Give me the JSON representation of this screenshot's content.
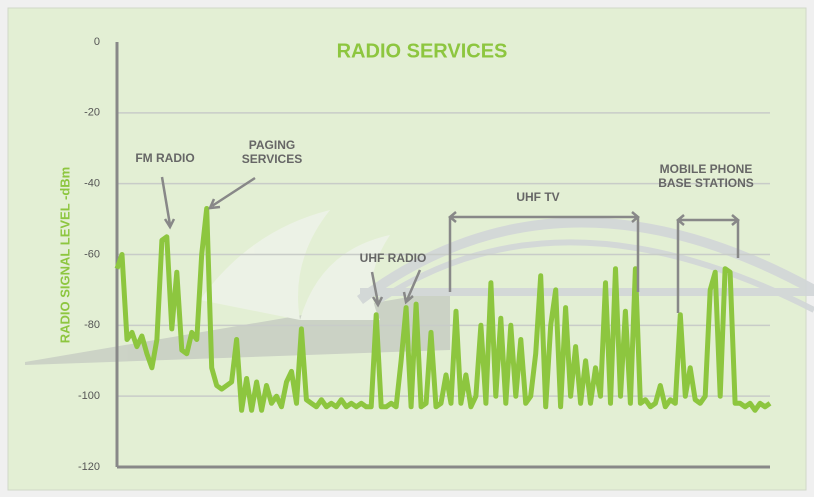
{
  "chart_data": {
    "type": "line",
    "title": "RADIO SERVICES",
    "y_label": "RADIO SIGNAL LEVEL -dBm",
    "ylim": [
      -120,
      0
    ],
    "yticks": [
      0,
      -20,
      -40,
      -60,
      -80,
      -100,
      -120
    ],
    "grid": true,
    "color": "#8dc63f",
    "values": [
      -64,
      -60,
      -84,
      -82,
      -86,
      -83,
      -88,
      -92,
      -84,
      -56,
      -55,
      -81,
      -65,
      -87,
      -88,
      -82,
      -84,
      -60,
      -47,
      -92,
      -97,
      -98,
      -97,
      -96,
      -84,
      -104,
      -95,
      -104,
      -96,
      -104,
      -97,
      -102,
      -100,
      -103,
      -96,
      -93,
      -102,
      -81,
      -101,
      -102,
      -103,
      -101,
      -103,
      -102,
      -103,
      -101,
      -103,
      -102,
      -103,
      -102,
      -103,
      -103,
      -77,
      -103,
      -103,
      -102,
      -103,
      -90,
      -75,
      -103,
      -74,
      -103,
      -102,
      -82,
      -103,
      -102,
      -94,
      -102,
      -76,
      -102,
      -94,
      -103,
      -100,
      -80,
      -102,
      -68,
      -100,
      -78,
      -102,
      -80,
      -100,
      -84,
      -102,
      -100,
      -88,
      -66,
      -103,
      -80,
      -70,
      -103,
      -75,
      -100,
      -86,
      -102,
      -90,
      -102,
      -92,
      -100,
      -68,
      -102,
      -64,
      -100,
      -76,
      -102,
      -64,
      -102,
      -101,
      -103,
      -102,
      -97,
      -103,
      -101,
      -102,
      -77,
      -100,
      -92,
      -101,
      -102,
      -100,
      -70,
      -65,
      -100,
      -64,
      -65,
      -102,
      -102,
      -103,
      -102,
      -104,
      -102,
      -103,
      -102
    ],
    "annotations": [
      {
        "lines": [
          "FM RADIO"
        ]
      },
      {
        "lines": [
          "PAGING",
          "SERVICES"
        ]
      },
      {
        "lines": [
          "UHF RADIO"
        ]
      },
      {
        "lines": [
          "UHF TV"
        ]
      },
      {
        "lines": [
          "MOBILE PHONE",
          "BASE STATIONS"
        ]
      }
    ]
  }
}
